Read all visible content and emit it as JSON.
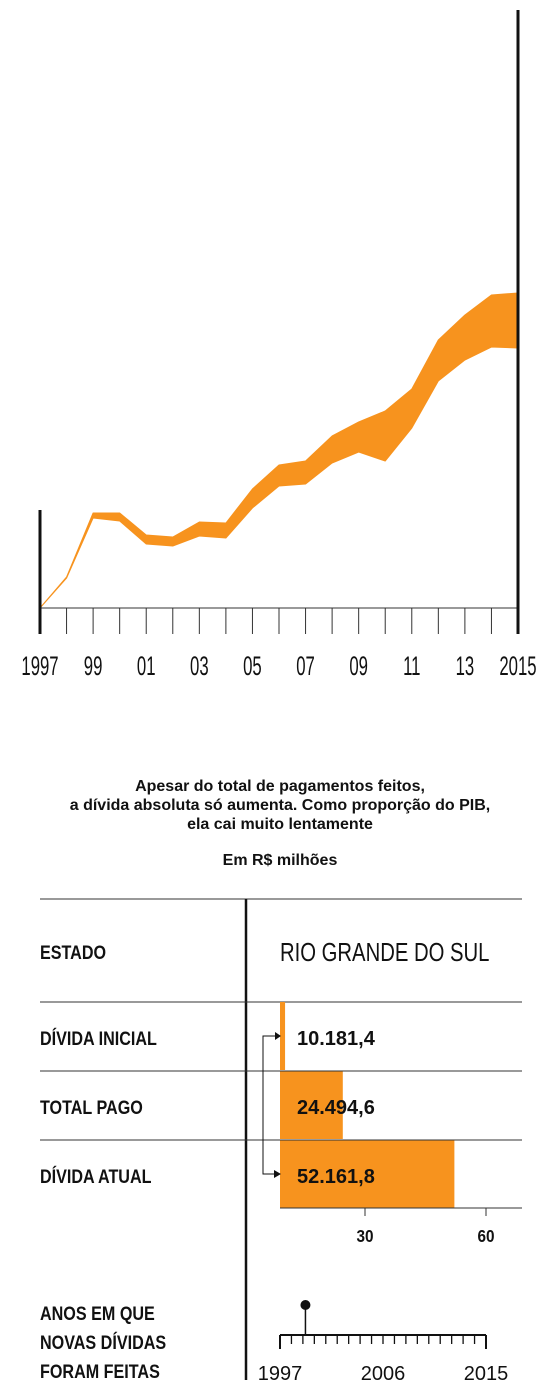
{
  "chart_data": [
    {
      "type": "area",
      "title": "",
      "x_tick_labels": [
        "1997",
        "99",
        "01",
        "03",
        "05",
        "07",
        "09",
        "11",
        "13",
        "2015"
      ],
      "x": [
        1997,
        1998,
        1999,
        2000,
        2001,
        2002,
        2003,
        2004,
        2005,
        2006,
        2007,
        2008,
        2009,
        2010,
        2011,
        2012,
        2013,
        2014,
        2015
      ],
      "series": [
        {
          "values_upper": [
            0,
            31,
            95,
            95,
            73,
            71,
            86,
            85,
            119,
            143,
            147,
            172,
            186,
            197,
            219,
            268,
            293,
            313,
            315
          ],
          "values_lower": [
            0,
            30,
            90,
            87,
            64,
            62,
            72,
            70,
            100,
            122,
            124,
            145,
            156,
            147,
            180,
            227,
            248,
            261,
            260
          ]
        }
      ],
      "color": "#f7931e"
    },
    {
      "type": "bar",
      "caption": [
        "Apesar do total de pagamentos feitos,",
        "a dívida absoluta só aumenta. Como proporção do PIB,",
        "ela cai muito lentamente"
      ],
      "unit": "Em R$ milhões",
      "header_label": "ESTADO",
      "header_value": "RIO GRANDE DO SUL",
      "categories": [
        "DÍVIDA INICIAL",
        "TOTAL PAGO",
        "DÍVIDA ATUAL"
      ],
      "values": [
        10181.4,
        24494.6,
        52161.8
      ],
      "value_labels": [
        "10.181,4",
        "24.494,6",
        "52.161,8"
      ],
      "x_ticks": [
        30,
        60
      ],
      "x_tick_labels": [
        "30",
        "60"
      ],
      "color": "#f7931e"
    },
    {
      "type": "timeline",
      "label_lines": [
        "ANOS EM QUE",
        "NOVAS DÍVIDAS",
        "FORAM FEITAS"
      ],
      "range": [
        1997,
        2015
      ],
      "tick_labels": [
        "1997",
        "2006",
        "2015"
      ],
      "events": [
        1998
      ]
    }
  ]
}
